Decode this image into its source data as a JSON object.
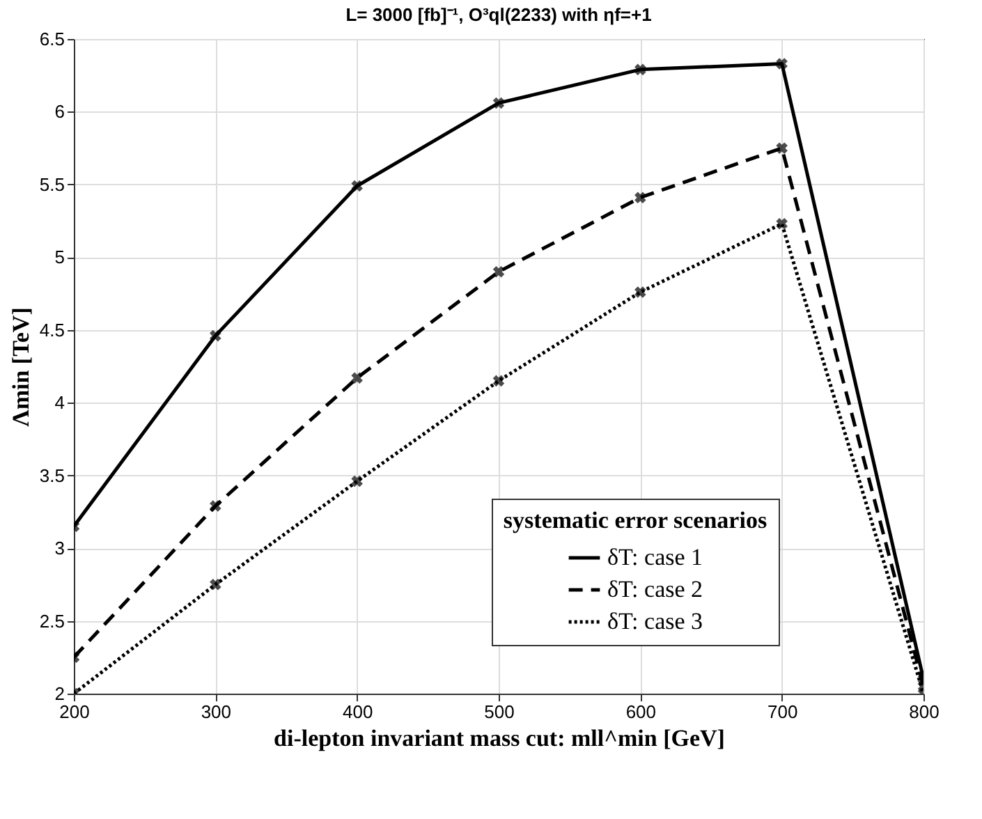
{
  "chart_data": {
    "type": "line",
    "title": "L= 3000 [fb]⁻¹, O³ql(2233) with ηf=+1",
    "xlabel": "di-lepton invariant mass cut: mll^min [GeV]",
    "ylabel": "Λmin [TeV]",
    "legend_title": "systematic error scenarios",
    "x": [
      200,
      300,
      400,
      500,
      600,
      700,
      800
    ],
    "series": [
      {
        "name": "δT: case 1",
        "color": "#000000",
        "line_style": "solid",
        "values": [
          3.15,
          4.46,
          5.49,
          6.06,
          6.29,
          6.33,
          2.1
        ]
      },
      {
        "name": "δT: case 2",
        "color": "#000000",
        "line_style": "dashed",
        "values": [
          2.25,
          3.29,
          4.17,
          4.9,
          5.41,
          5.75,
          2.05
        ]
      },
      {
        "name": "δT: case 3",
        "color": "#000000",
        "line_style": "dotted",
        "values": [
          2.0,
          2.75,
          3.46,
          4.15,
          4.76,
          5.23,
          2.0
        ]
      }
    ],
    "xlim": [
      200,
      800
    ],
    "xticks": [
      200,
      300,
      400,
      500,
      600,
      700,
      800
    ],
    "ylim": [
      2,
      6.5
    ],
    "yticks": [
      2,
      2.5,
      3,
      3.5,
      4,
      4.5,
      5,
      5.5,
      6,
      6.5
    ],
    "grid": true,
    "legend": "bottom right",
    "marker": "cross"
  }
}
